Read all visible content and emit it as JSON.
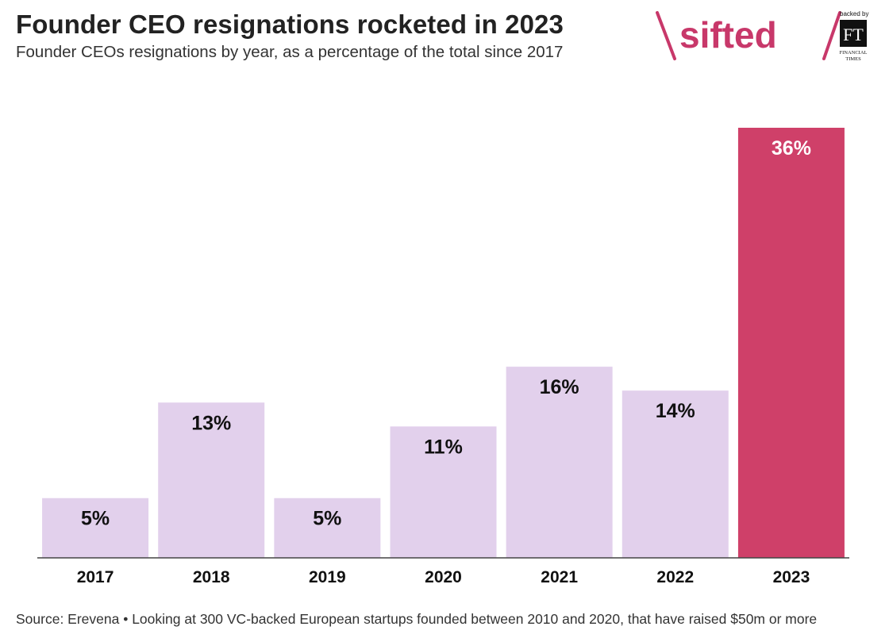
{
  "header": {
    "title": "Founder CEO resignations rocketed in 2023",
    "subtitle": "Founder CEOs resignations by year, as a percentage of the total since 2017"
  },
  "brand": {
    "name": "sifted",
    "backed_by": "backed by",
    "ft_mark": "FT",
    "ft_name_line1": "FINANCIAL",
    "ft_name_line2": "TIMES",
    "color": "#c8386a"
  },
  "footer": {
    "source": "Source: Erevena • Looking at 300 VC-backed European startups founded between 2010 and 2020, that have raised $50m or more"
  },
  "colors": {
    "bar": "#e2d0ec",
    "highlight": "#cf4069",
    "label_dark": "#111111",
    "label_light": "#ffffff"
  },
  "chart_data": {
    "type": "bar",
    "categories": [
      "2017",
      "2018",
      "2019",
      "2020",
      "2021",
      "2022",
      "2023"
    ],
    "values": [
      5,
      13,
      5,
      11,
      16,
      14,
      36
    ],
    "labels": [
      "5%",
      "13%",
      "5%",
      "11%",
      "16%",
      "14%",
      "36%"
    ],
    "highlight_category": "2023",
    "title": "Founder CEO resignations rocketed in 2023",
    "ylim": [
      0,
      36
    ],
    "grid": false,
    "legend": "none"
  }
}
